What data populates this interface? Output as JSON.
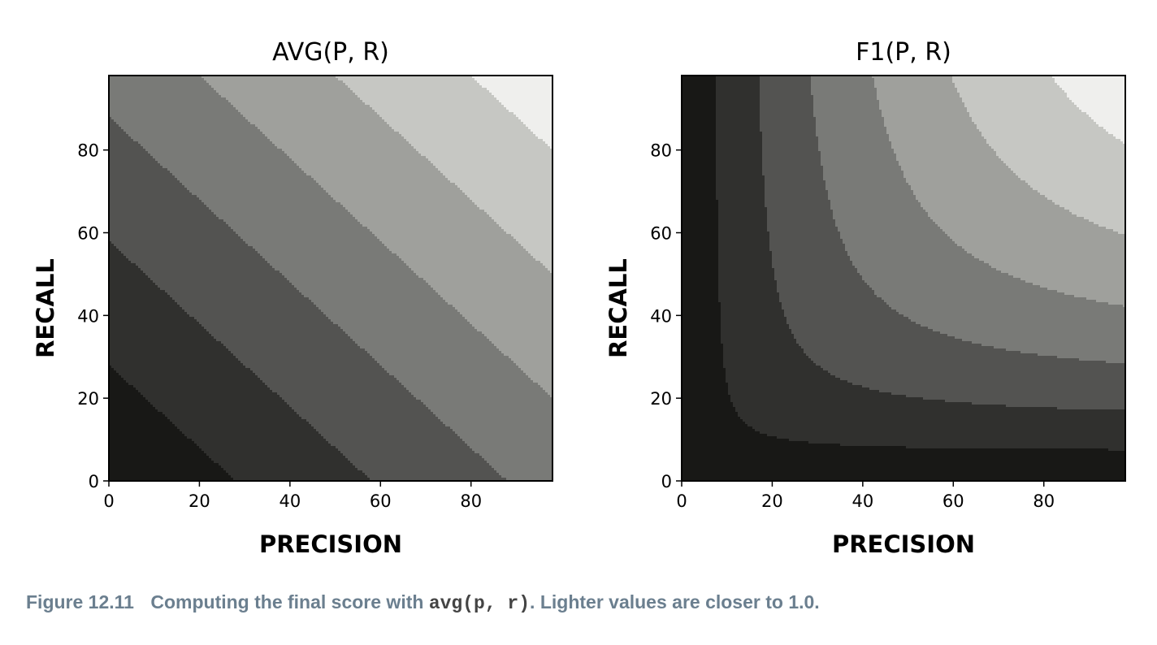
{
  "chart_data": [
    {
      "type": "heatmap",
      "function": "avg",
      "title": "AVG(P, R)",
      "xlabel": "PRECISION",
      "ylabel": "RECALL",
      "xlim": [
        0,
        98
      ],
      "ylim": [
        0,
        98
      ],
      "xticks": [
        0,
        20,
        40,
        60,
        80
      ],
      "yticks": [
        0,
        20,
        40,
        60,
        80
      ],
      "levels": [
        0,
        0.14,
        0.29,
        0.44,
        0.59,
        0.74,
        0.89,
        1.0
      ],
      "level_colors": [
        "#181816",
        "#30302e",
        "#535351",
        "#797a77",
        "#9fa09c",
        "#c6c7c3",
        "#efefed"
      ],
      "colormap": "greys, lighter values closer to 1.0"
    },
    {
      "type": "heatmap",
      "function": "f1",
      "title": "F1(P, R)",
      "xlabel": "PRECISION",
      "ylabel": "RECALL",
      "xlim": [
        0,
        98
      ],
      "ylim": [
        0,
        98
      ],
      "xticks": [
        0,
        20,
        40,
        60,
        80
      ],
      "yticks": [
        0,
        20,
        40,
        60,
        80
      ],
      "levels": [
        0,
        0.14,
        0.29,
        0.44,
        0.59,
        0.74,
        0.89,
        1.0
      ],
      "level_colors": [
        "#181816",
        "#30302e",
        "#535351",
        "#797a77",
        "#9fa09c",
        "#c6c7c3",
        "#efefed"
      ],
      "colormap": "greys, lighter values closer to 1.0"
    }
  ],
  "caption": {
    "figure_number": "Figure 12.11",
    "text_before": "Computing the final score with ",
    "code": "avg(p, r)",
    "text_after": ". Lighter values are closer to 1.0."
  }
}
